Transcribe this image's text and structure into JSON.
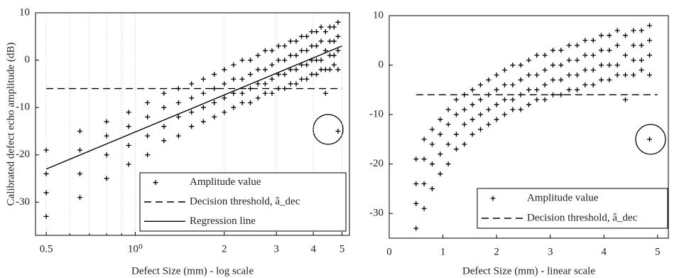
{
  "chart_data": [
    {
      "type": "scatter",
      "xscale": "log",
      "xlabel": "Defect Size (mm) - log scale",
      "ylabel": "Calibrated defect echo amplitude (dB)",
      "xlim": [
        0.46,
        5.3
      ],
      "ylim": [
        -37,
        10
      ],
      "xticks": [
        0.5,
        {
          "value": 1,
          "label": "10⁰"
        },
        2,
        3,
        4,
        5
      ],
      "xminorticks": [
        0.6,
        0.7,
        0.8,
        0.9
      ],
      "yticks": [
        -30,
        -20,
        -10,
        0,
        10
      ],
      "grid": true,
      "legend": "lower right",
      "series": [
        {
          "name": "Amplitude value",
          "color": "#000000",
          "marker": "+",
          "x": [
            0.5,
            0.5,
            0.5,
            0.5,
            0.65,
            0.65,
            0.65,
            0.65,
            0.8,
            0.8,
            0.8,
            0.8,
            0.95,
            0.95,
            0.95,
            0.95,
            1.1,
            1.1,
            1.1,
            1.1,
            1.25,
            1.25,
            1.25,
            1.25,
            1.4,
            1.4,
            1.4,
            1.4,
            1.55,
            1.55,
            1.55,
            1.55,
            1.7,
            1.7,
            1.7,
            1.7,
            1.85,
            1.85,
            1.85,
            1.85,
            2.0,
            2.0,
            2.0,
            2.0,
            2.15,
            2.15,
            2.15,
            2.15,
            2.3,
            2.3,
            2.3,
            2.3,
            2.45,
            2.45,
            2.45,
            2.45,
            2.6,
            2.6,
            2.6,
            2.6,
            2.75,
            2.75,
            2.75,
            2.75,
            2.9,
            2.9,
            2.9,
            2.9,
            3.05,
            3.05,
            3.05,
            3.05,
            3.2,
            3.2,
            3.2,
            3.2,
            3.35,
            3.35,
            3.35,
            3.35,
            3.5,
            3.5,
            3.5,
            3.5,
            3.65,
            3.65,
            3.65,
            3.65,
            3.8,
            3.8,
            3.8,
            3.8,
            3.95,
            3.95,
            3.95,
            3.95,
            4.1,
            4.1,
            4.1,
            4.1,
            4.25,
            4.25,
            4.25,
            4.25,
            4.4,
            4.4,
            4.4,
            4.4,
            4.55,
            4.55,
            4.55,
            4.55,
            4.7,
            4.7,
            4.7,
            4.7,
            4.85,
            4.85,
            4.85,
            4.85,
            4.85
          ],
          "values": [
            -33,
            -28,
            -24,
            -19,
            -29,
            -24,
            -19,
            -15,
            -25,
            -20,
            -16,
            -13,
            -22,
            -18,
            -14,
            -11,
            -20,
            -16,
            -12,
            -9,
            -17,
            -14,
            -10,
            -7,
            -16,
            -12,
            -9,
            -6,
            -14,
            -11,
            -8,
            -5,
            -13,
            -10,
            -7,
            -4,
            -12,
            -9,
            -6,
            -3,
            -11,
            -8,
            -5,
            -2,
            -10,
            -7,
            -4,
            -1,
            -9,
            -7,
            -4,
            0,
            -9,
            -6,
            -3,
            0,
            -8,
            -5,
            -2,
            1,
            -7,
            -5,
            -2,
            2,
            -7,
            -4,
            -1,
            2,
            -6,
            -3,
            0,
            3,
            -6,
            -3,
            0,
            3,
            -5,
            -2,
            1,
            4,
            -5,
            -2,
            1,
            4,
            -4,
            -1,
            2,
            5,
            -4,
            -1,
            2,
            5,
            -3,
            0,
            3,
            6,
            -3,
            0,
            3,
            6,
            -2,
            0,
            4,
            7,
            -7,
            -2,
            2,
            6,
            -2,
            1,
            4,
            7,
            -1,
            1,
            4,
            7,
            -2,
            2,
            5,
            8,
            -15
          ]
        },
        {
          "name": "Decision threshold, â_dec",
          "color": "#000000",
          "linestyle": "dashed",
          "x": [
            0.5,
            5
          ],
          "values": [
            -6,
            -6
          ]
        },
        {
          "name": "Regression line",
          "color": "#000000",
          "linestyle": "solid",
          "x": [
            0.5,
            5
          ],
          "values": [
            -23,
            3
          ]
        }
      ]
    },
    {
      "type": "scatter",
      "xscale": "linear",
      "xlabel": "Defect Size (mm) - linear scale",
      "xlim": [
        0,
        5.2
      ],
      "ylim": [
        -35,
        10
      ],
      "xticks": [
        0,
        1,
        2,
        3,
        4,
        5
      ],
      "yticks": [
        -30,
        -20,
        -10,
        0,
        10
      ],
      "grid": false,
      "legend": "lower right",
      "series": [
        {
          "name": "Amplitude value",
          "color": "#000000",
          "marker": "+",
          "x": [
            0.5,
            0.5,
            0.5,
            0.5,
            0.65,
            0.65,
            0.65,
            0.65,
            0.8,
            0.8,
            0.8,
            0.8,
            0.95,
            0.95,
            0.95,
            0.95,
            1.1,
            1.1,
            1.1,
            1.1,
            1.25,
            1.25,
            1.25,
            1.25,
            1.4,
            1.4,
            1.4,
            1.4,
            1.55,
            1.55,
            1.55,
            1.55,
            1.7,
            1.7,
            1.7,
            1.7,
            1.85,
            1.85,
            1.85,
            1.85,
            2.0,
            2.0,
            2.0,
            2.0,
            2.15,
            2.15,
            2.15,
            2.15,
            2.3,
            2.3,
            2.3,
            2.3,
            2.45,
            2.45,
            2.45,
            2.45,
            2.6,
            2.6,
            2.6,
            2.6,
            2.75,
            2.75,
            2.75,
            2.75,
            2.9,
            2.9,
            2.9,
            2.9,
            3.05,
            3.05,
            3.05,
            3.05,
            3.2,
            3.2,
            3.2,
            3.2,
            3.35,
            3.35,
            3.35,
            3.35,
            3.5,
            3.5,
            3.5,
            3.5,
            3.65,
            3.65,
            3.65,
            3.65,
            3.8,
            3.8,
            3.8,
            3.8,
            3.95,
            3.95,
            3.95,
            3.95,
            4.1,
            4.1,
            4.1,
            4.1,
            4.25,
            4.25,
            4.25,
            4.25,
            4.4,
            4.4,
            4.4,
            4.4,
            4.55,
            4.55,
            4.55,
            4.55,
            4.7,
            4.7,
            4.7,
            4.7,
            4.85,
            4.85,
            4.85,
            4.85,
            4.85
          ],
          "values": [
            -33,
            -28,
            -24,
            -19,
            -29,
            -24,
            -19,
            -15,
            -25,
            -20,
            -16,
            -13,
            -22,
            -18,
            -14,
            -11,
            -20,
            -16,
            -12,
            -9,
            -17,
            -14,
            -10,
            -7,
            -16,
            -12,
            -9,
            -6,
            -14,
            -11,
            -8,
            -5,
            -13,
            -10,
            -7,
            -4,
            -12,
            -9,
            -6,
            -3,
            -11,
            -8,
            -5,
            -2,
            -10,
            -7,
            -4,
            -1,
            -9,
            -7,
            -4,
            0,
            -9,
            -6,
            -3,
            0,
            -8,
            -5,
            -2,
            1,
            -7,
            -5,
            -2,
            2,
            -7,
            -4,
            -1,
            2,
            -6,
            -3,
            0,
            3,
            -6,
            -3,
            0,
            3,
            -5,
            -2,
            1,
            4,
            -5,
            -2,
            1,
            4,
            -4,
            -1,
            2,
            5,
            -4,
            -1,
            2,
            5,
            -3,
            0,
            3,
            6,
            -3,
            0,
            3,
            6,
            -2,
            0,
            4,
            7,
            -7,
            -2,
            2,
            6,
            -2,
            1,
            4,
            7,
            -1,
            1,
            4,
            7,
            -2,
            2,
            5,
            8,
            -15
          ]
        },
        {
          "name": "Decision threshold, â_dec",
          "color": "#000000",
          "linestyle": "dashed",
          "x": [
            0.5,
            5
          ],
          "values": [
            -6,
            -6
          ]
        }
      ]
    }
  ]
}
